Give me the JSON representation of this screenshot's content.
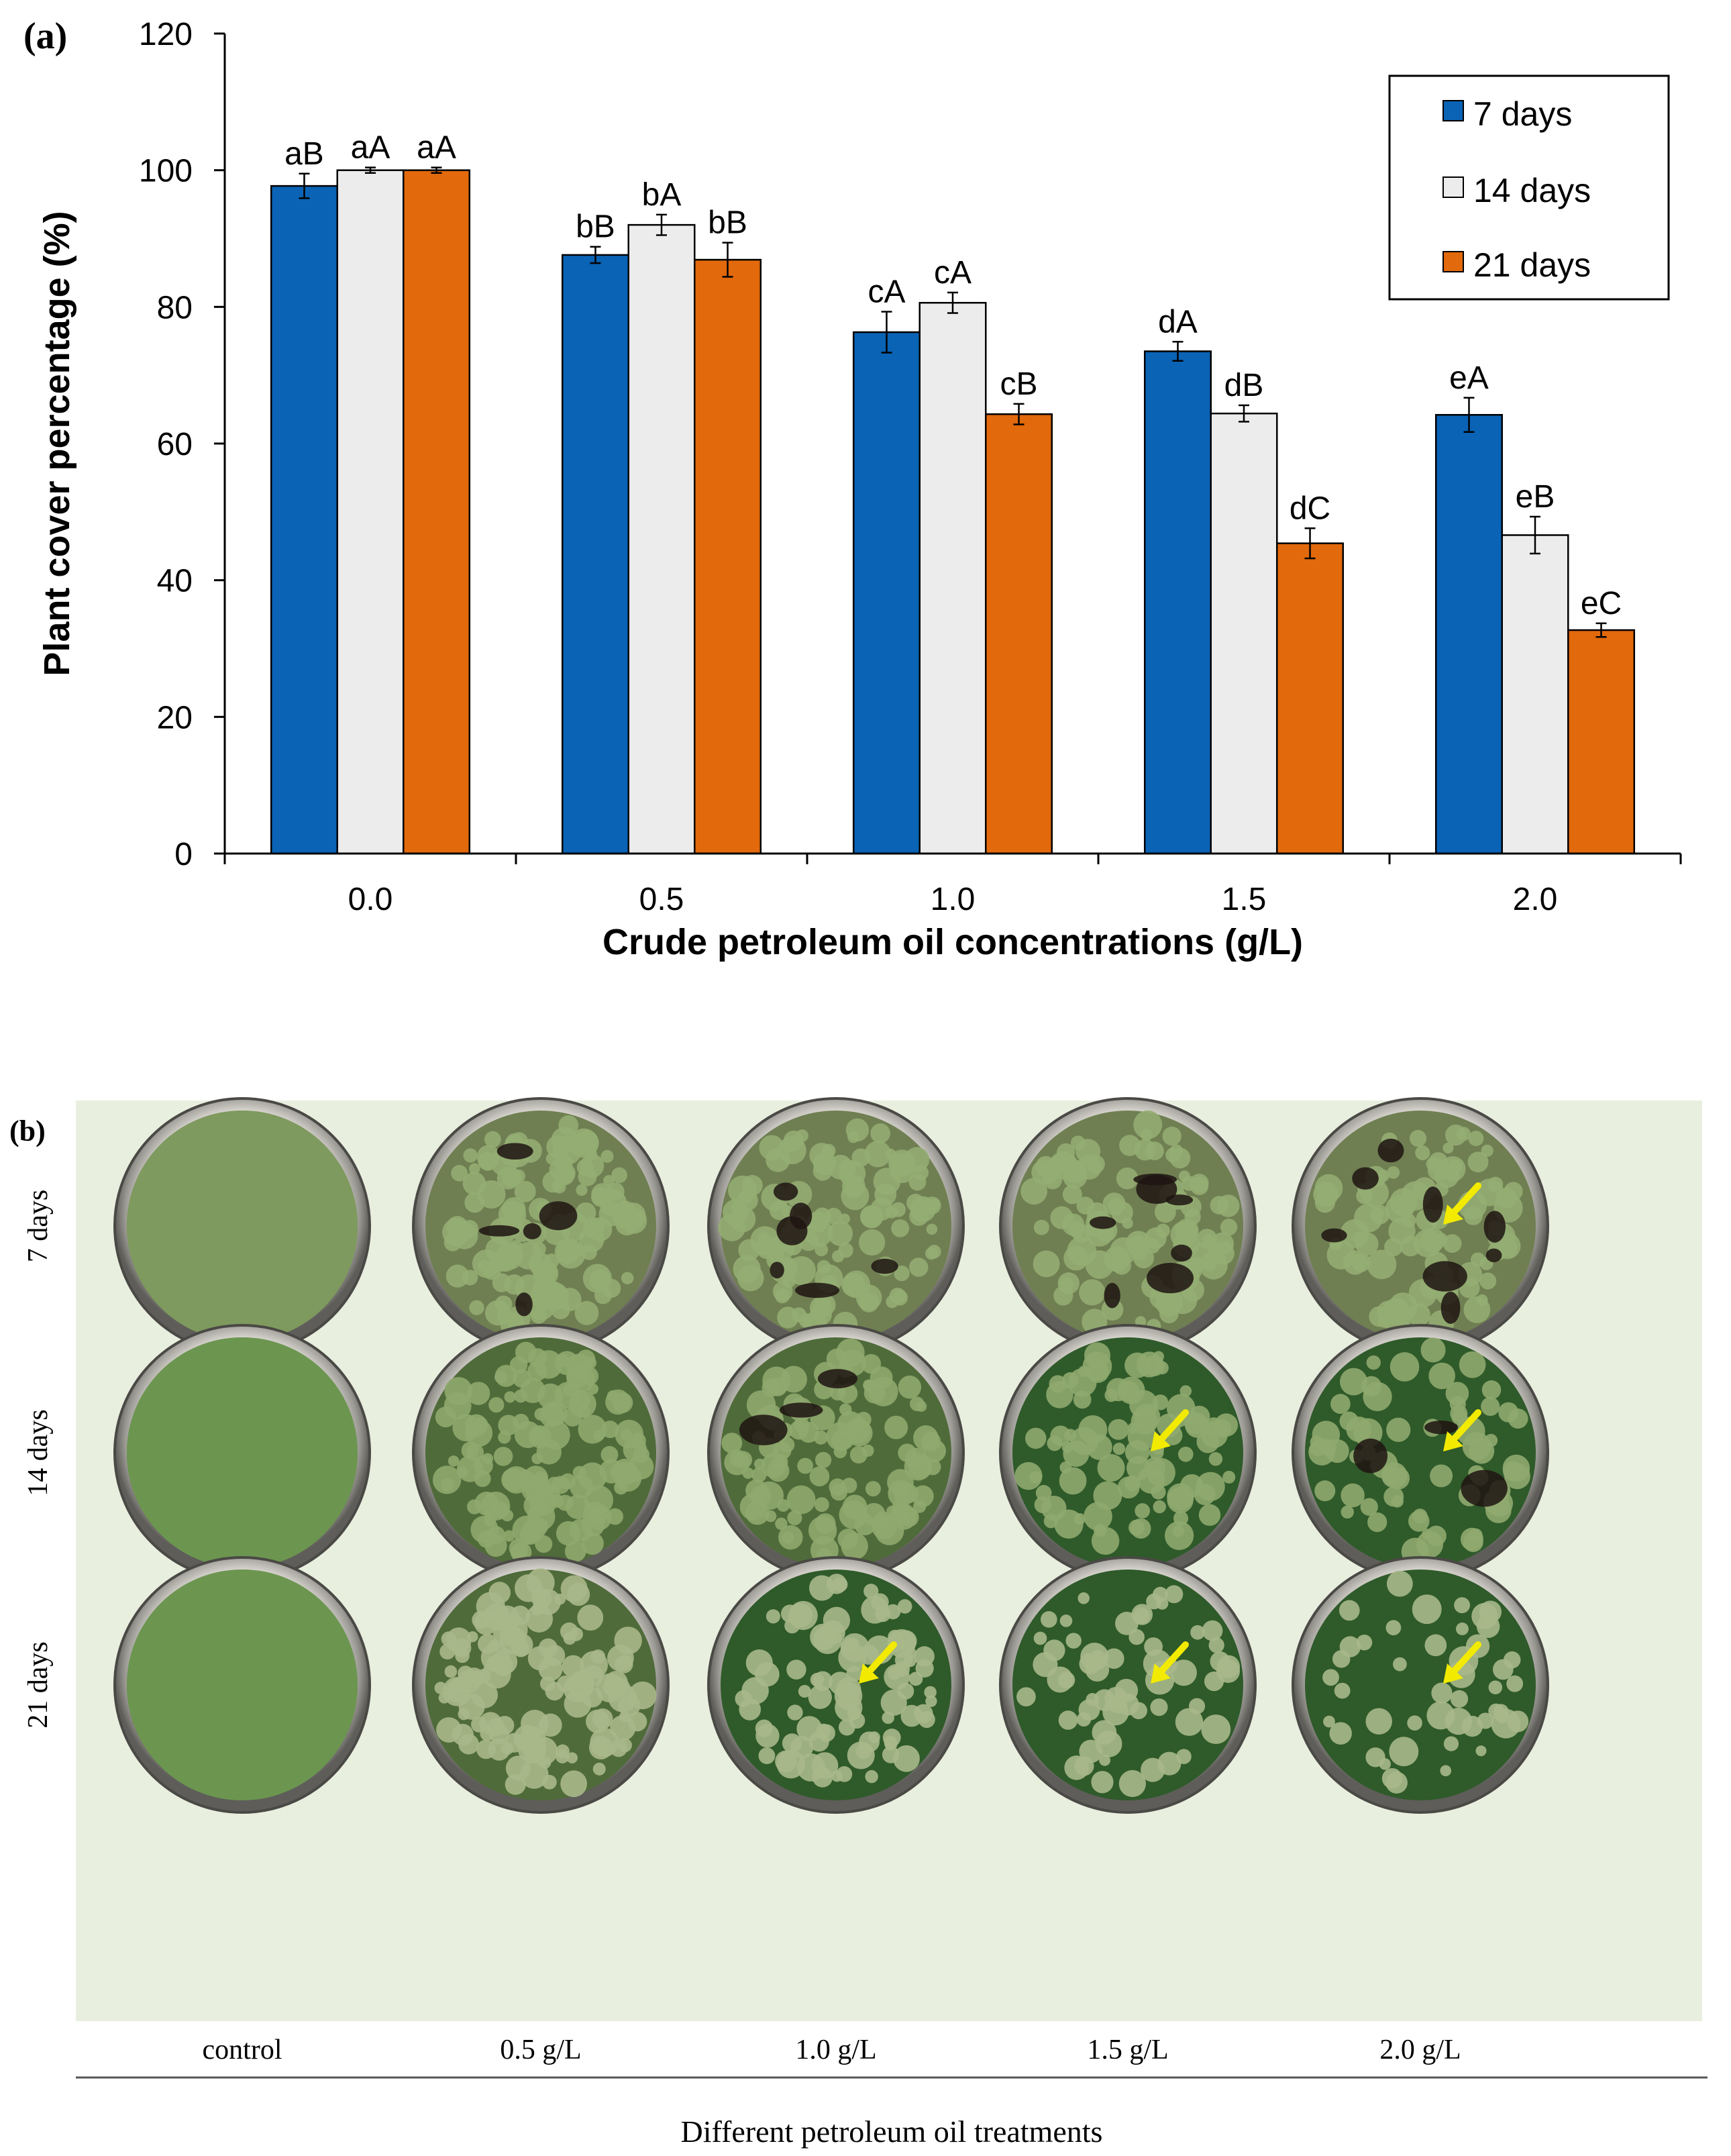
{
  "panel_a_label": "(a)",
  "panel_b_label": "(b)",
  "chart_data": {
    "type": "bar",
    "title": "",
    "xlabel": "Crude petroleum oil concentrations (g/L)",
    "ylabel": "Plant cover percentage (%)",
    "ylim": [
      0,
      120
    ],
    "yticks": [
      "0",
      "20",
      "40",
      "60",
      "80",
      "100",
      "120"
    ],
    "categories": [
      "0.0",
      "0.5",
      "1.0",
      "1.5",
      "2.0"
    ],
    "legend_position": "top-right",
    "grid": false,
    "series": [
      {
        "name": "7 days",
        "color": "#0a63b5",
        "values": [
          97.7,
          87.6,
          76.3,
          73.5,
          64.2
        ],
        "errors": [
          1.8,
          1.2,
          3.0,
          1.4,
          2.5
        ],
        "labels": [
          "aB",
          "bB",
          "cA",
          "dA",
          "eA"
        ]
      },
      {
        "name": "14 days",
        "color": "#ececec",
        "values": [
          100.0,
          92.0,
          80.6,
          64.4,
          46.6
        ],
        "errors": [
          0.4,
          1.5,
          1.5,
          1.2,
          2.7
        ],
        "labels": [
          "aA",
          "bA",
          "cA",
          "dB",
          "eB"
        ]
      },
      {
        "name": "21 days",
        "color": "#e2690c",
        "values": [
          100.0,
          86.9,
          64.3,
          45.4,
          32.7
        ],
        "errors": [
          0.4,
          2.5,
          1.5,
          2.2,
          1.0
        ],
        "labels": [
          "aA",
          "bB",
          "cB",
          "dC",
          "eC"
        ]
      }
    ]
  },
  "photo_panel": {
    "row_labels": [
      "7 days",
      "14 days",
      "21 days"
    ],
    "column_labels": [
      "control",
      "0.5 g/L",
      "1.0 g/L",
      "1.5 g/L",
      "2.0 g/L"
    ],
    "xlabel": "Different petroleum oil treatments",
    "arrow_color": "#f2ea00",
    "background_color": "#e8efdf"
  }
}
